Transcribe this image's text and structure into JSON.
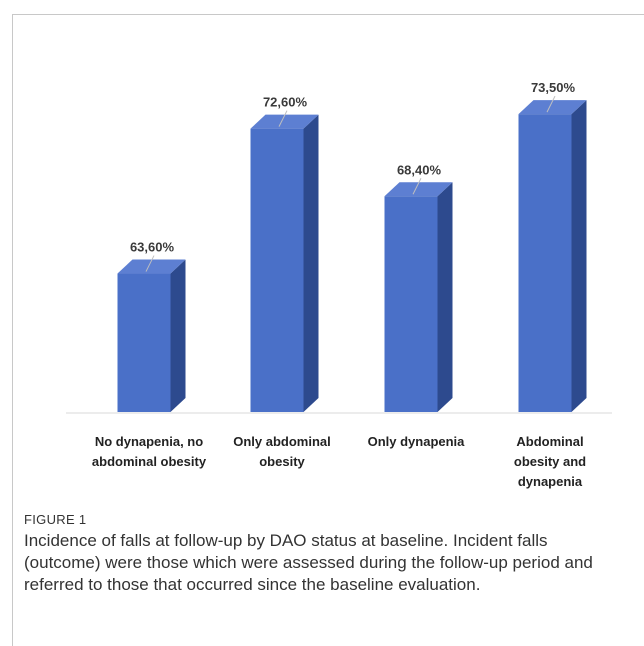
{
  "figure": {
    "label": "FIGURE 1",
    "caption": "Incidence of falls at follow-up by DAO status at baseline. Incident falls (outcome) were those which were assessed during the follow-up period and referred to those that occurred since the baseline evaluation."
  },
  "colors": {
    "bar_front": "#4a70c8",
    "bar_side": "#2d4a8e",
    "bar_top": "#5d7fd2"
  },
  "chart_data": {
    "type": "bar",
    "categories": [
      [
        "No dynapenia, no",
        "abdominal obesity"
      ],
      [
        "Only abdominal",
        "obesity"
      ],
      [
        "Only dynapenia"
      ],
      [
        "Abdominal",
        "obesity and",
        "dynapenia"
      ]
    ],
    "values": [
      63.6,
      72.6,
      68.4,
      73.5
    ],
    "labels": [
      "63,60%",
      "72,60%",
      "68,40%",
      "73,50%"
    ],
    "ylim": [
      55,
      75
    ],
    "grid": false,
    "legend": "none"
  }
}
